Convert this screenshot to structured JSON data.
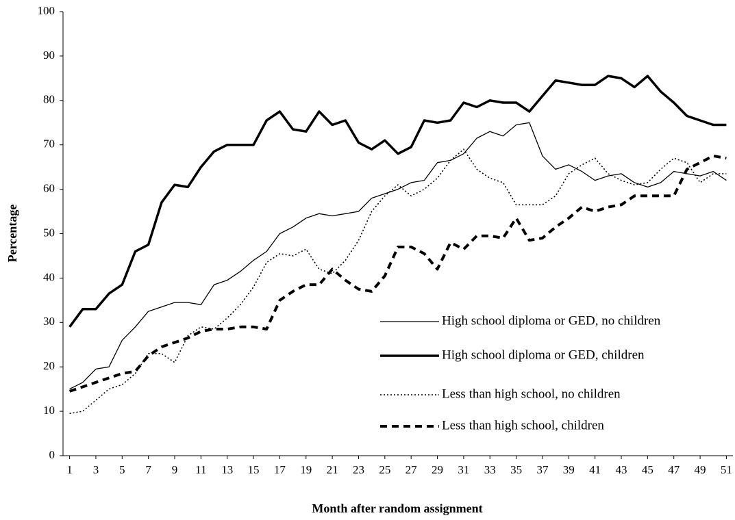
{
  "chart_data": {
    "type": "line",
    "x_label": "Month after random assignment",
    "y_label": "Percentage",
    "x": [
      1,
      2,
      3,
      4,
      5,
      6,
      7,
      8,
      9,
      10,
      11,
      12,
      13,
      14,
      15,
      16,
      17,
      18,
      19,
      20,
      21,
      22,
      23,
      24,
      25,
      26,
      27,
      28,
      29,
      30,
      31,
      32,
      33,
      34,
      35,
      36,
      37,
      38,
      39,
      40,
      41,
      42,
      43,
      44,
      45,
      46,
      47,
      48,
      49,
      50,
      51
    ],
    "xlim": [
      0.5,
      51.5
    ],
    "xticks": [
      1,
      3,
      5,
      7,
      9,
      11,
      13,
      15,
      17,
      19,
      21,
      23,
      25,
      27,
      29,
      31,
      33,
      35,
      37,
      39,
      41,
      43,
      45,
      47,
      49,
      51
    ],
    "ylim": [
      0,
      100
    ],
    "yticks": [
      0,
      10,
      20,
      30,
      40,
      50,
      60,
      70,
      80,
      90,
      100
    ],
    "grid": false,
    "legend": "lower-right",
    "series": [
      {
        "name": "High school diploma or GED, no children",
        "color": "#000000",
        "width": 1.3,
        "dash": "none",
        "values": [
          15,
          16.5,
          19.5,
          20,
          26,
          29,
          32.5,
          33.5,
          34.5,
          34.5,
          34,
          38.5,
          39.5,
          41.5,
          44,
          46,
          50,
          51.5,
          53.5,
          54.5,
          54,
          54.5,
          55,
          58,
          59,
          60,
          61.5,
          62,
          66,
          66.5,
          68,
          71.5,
          73,
          72,
          74.5,
          75,
          67.5,
          64.5,
          65.5,
          64,
          62,
          63,
          63.5,
          61.5,
          60.5,
          61.5,
          64,
          63.5,
          63,
          64,
          62
        ]
      },
      {
        "name": "High school diploma or GED, children",
        "color": "#000000",
        "width": 3.5,
        "dash": "none",
        "values": [
          29,
          33,
          33,
          36.5,
          38.5,
          46,
          47.5,
          57,
          61,
          60.5,
          65,
          68.5,
          70,
          70,
          70,
          75.5,
          77.5,
          73.5,
          73,
          77.5,
          74.5,
          75.5,
          70.5,
          69,
          71,
          68,
          69.5,
          75.5,
          75,
          75.5,
          79.5,
          78.5,
          80,
          79.5,
          79.5,
          77.5,
          81,
          84.5,
          84,
          83.5,
          83.5,
          85.5,
          85,
          83,
          85.5,
          82,
          79.5,
          76.5,
          75.5,
          74.5,
          74.5
        ]
      },
      {
        "name": "Less than high school, no children",
        "color": "#000000",
        "width": 1.6,
        "dash": "2 3",
        "values": [
          9.5,
          10,
          12.5,
          15,
          16,
          18.5,
          23,
          23,
          21,
          27,
          29,
          28.5,
          31,
          34,
          38,
          43.5,
          45.5,
          45,
          46.5,
          42,
          41,
          44,
          48.5,
          55,
          58.5,
          61,
          58.5,
          60,
          62.5,
          66.5,
          69,
          64.5,
          62.5,
          61.5,
          56.5,
          56.5,
          56.5,
          58.5,
          63.5,
          65.5,
          67,
          63.5,
          62,
          61,
          61.5,
          64.5,
          67,
          66,
          61.5,
          63.5,
          63.5
        ]
      },
      {
        "name": "Less than high school, children",
        "color": "#000000",
        "width": 4,
        "dash": "10 7",
        "values": [
          14.5,
          15.5,
          16.5,
          17.5,
          18.5,
          19,
          22.5,
          24.5,
          25.5,
          26.5,
          28,
          28.5,
          28.5,
          29,
          29,
          28.5,
          35,
          37,
          38.5,
          38.5,
          42,
          39.5,
          37.5,
          37,
          40.5,
          47,
          47,
          45.5,
          42,
          48,
          46.5,
          49.5,
          49.5,
          49,
          53.5,
          48.5,
          49,
          51.5,
          53.5,
          56,
          55,
          56,
          56.5,
          58.5,
          58.5,
          58.5,
          58.5,
          64.5,
          66,
          67.5,
          67
        ]
      }
    ]
  }
}
